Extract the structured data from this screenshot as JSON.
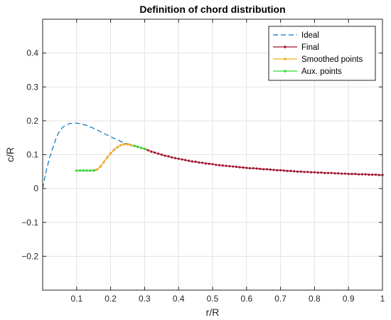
{
  "chart_data": {
    "type": "line",
    "title": "Definition of chord distribution",
    "xlabel": "r/R",
    "ylabel": "c/R",
    "xlim": [
      0,
      1
    ],
    "ylim": [
      -0.3,
      0.5
    ],
    "xticks": [
      0.1,
      0.2,
      0.3,
      0.4,
      0.5,
      0.6,
      0.7,
      0.8,
      0.9,
      1
    ],
    "xtick_labels": [
      "0.1",
      "0.2",
      "0.3",
      "0.4",
      "0.5",
      "0.6",
      "0.7",
      "0.8",
      "0.9",
      "1"
    ],
    "yticks": [
      -0.2,
      -0.1,
      0,
      0.1,
      0.2,
      0.3,
      0.4
    ],
    "ytick_labels": [
      "−0.2",
      "−0.1",
      "0",
      "0.1",
      "0.2",
      "0.3",
      "0.4"
    ],
    "grid": true,
    "legend_position": "top-right",
    "series": [
      {
        "name": "Ideal",
        "color": "#0072bd",
        "style": "dashed",
        "marker": "none",
        "x": [
          0,
          0.01,
          0.02,
          0.03,
          0.04,
          0.05,
          0.06,
          0.07,
          0.08,
          0.09,
          0.1,
          0.11,
          0.12,
          0.13,
          0.14,
          0.15,
          0.16,
          0.17,
          0.18,
          0.19,
          0.2,
          0.21,
          0.22,
          0.23,
          0.24,
          0.25,
          0.26,
          0.27,
          0.28,
          0.29,
          0.3
        ],
        "y": [
          0,
          0.05,
          0.09,
          0.12,
          0.15,
          0.17,
          0.182,
          0.188,
          0.192,
          0.193,
          0.193,
          0.192,
          0.189,
          0.186,
          0.182,
          0.178,
          0.173,
          0.168,
          0.163,
          0.158,
          0.153,
          0.148,
          0.144,
          0.139,
          0.135,
          0.131,
          0.13,
          0.127,
          0.124,
          0.12,
          0.117
        ]
      },
      {
        "name": "Final",
        "color": "#a2142f",
        "style": "solid",
        "marker": "dot",
        "x": [
          0.1,
          0.11,
          0.12,
          0.13,
          0.14,
          0.15,
          0.16,
          0.17,
          0.18,
          0.19,
          0.2,
          0.21,
          0.22,
          0.23,
          0.24,
          0.25,
          0.26,
          0.27,
          0.28,
          0.29,
          0.3,
          0.31,
          0.32,
          0.33,
          0.34,
          0.35,
          0.36,
          0.37,
          0.38,
          0.39,
          0.4,
          0.41,
          0.42,
          0.43,
          0.44,
          0.45,
          0.46,
          0.47,
          0.48,
          0.49,
          0.5,
          0.51,
          0.52,
          0.53,
          0.54,
          0.55,
          0.56,
          0.57,
          0.58,
          0.59,
          0.6,
          0.61,
          0.62,
          0.63,
          0.64,
          0.65,
          0.66,
          0.67,
          0.68,
          0.69,
          0.7,
          0.71,
          0.72,
          0.73,
          0.74,
          0.75,
          0.76,
          0.77,
          0.78,
          0.79,
          0.8,
          0.81,
          0.82,
          0.83,
          0.84,
          0.85,
          0.86,
          0.87,
          0.88,
          0.89,
          0.9,
          0.91,
          0.92,
          0.93,
          0.94,
          0.95,
          0.96,
          0.97,
          0.98,
          0.99,
          1.0
        ],
        "y": [
          0.053,
          0.053,
          0.053,
          0.053,
          0.053,
          0.053,
          0.056,
          0.065,
          0.078,
          0.092,
          0.104,
          0.114,
          0.122,
          0.128,
          0.131,
          0.131,
          0.128,
          0.126,
          0.123,
          0.12,
          0.117,
          0.113,
          0.109,
          0.106,
          0.103,
          0.1,
          0.097,
          0.095,
          0.092,
          0.09,
          0.088,
          0.086,
          0.084,
          0.082,
          0.08,
          0.079,
          0.077,
          0.076,
          0.074,
          0.073,
          0.072,
          0.07,
          0.069,
          0.068,
          0.067,
          0.066,
          0.065,
          0.064,
          0.063,
          0.062,
          0.061,
          0.06,
          0.06,
          0.059,
          0.058,
          0.057,
          0.057,
          0.056,
          0.055,
          0.054,
          0.054,
          0.053,
          0.052,
          0.052,
          0.051,
          0.05,
          0.05,
          0.049,
          0.049,
          0.048,
          0.048,
          0.047,
          0.047,
          0.046,
          0.046,
          0.046,
          0.045,
          0.045,
          0.044,
          0.044,
          0.043,
          0.043,
          0.043,
          0.042,
          0.042,
          0.042,
          0.041,
          0.041,
          0.041,
          0.04,
          0.04
        ]
      },
      {
        "name": "Smoothed points",
        "color": "#edb120",
        "style": "solid",
        "marker": "dot",
        "x": [
          0.16,
          0.17,
          0.18,
          0.19,
          0.2,
          0.21,
          0.22,
          0.23,
          0.24,
          0.25,
          0.26,
          0.27
        ],
        "y": [
          0.056,
          0.065,
          0.078,
          0.092,
          0.104,
          0.114,
          0.122,
          0.128,
          0.131,
          0.131,
          0.128,
          0.126
        ]
      },
      {
        "name": "Aux. points",
        "color": "#33dd33",
        "style": "solid",
        "marker": "dot",
        "x_segments": [
          [
            0.1,
            0.11,
            0.12,
            0.13,
            0.14,
            0.15
          ],
          [
            0.27,
            0.28,
            0.29,
            0.3
          ]
        ],
        "y_segments": [
          [
            0.053,
            0.053,
            0.053,
            0.053,
            0.053,
            0.053
          ],
          [
            0.126,
            0.123,
            0.12,
            0.117
          ]
        ]
      }
    ]
  }
}
